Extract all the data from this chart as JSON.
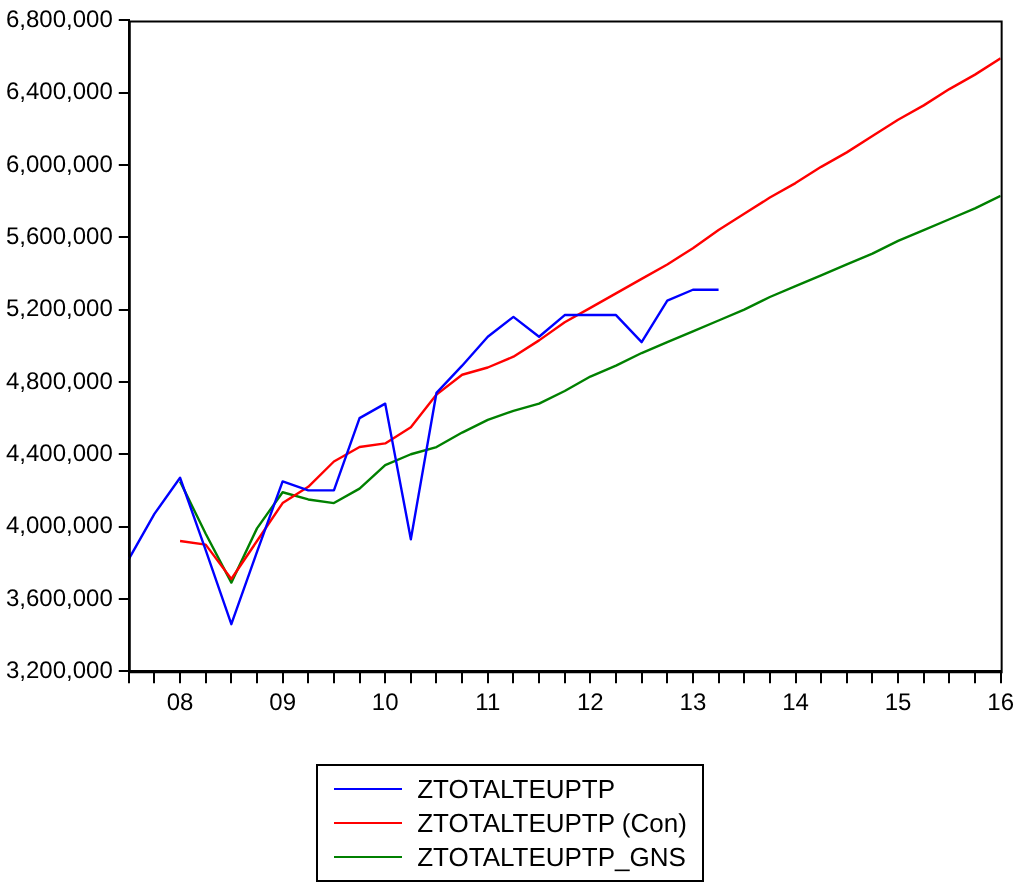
{
  "chart_data": {
    "type": "line",
    "legend": "bottom",
    "grid": false,
    "marker": "none",
    "line_style": "solid",
    "categories": [
      null,
      null,
      "08",
      null,
      null,
      null,
      "09",
      null,
      null,
      null,
      "10",
      null,
      null,
      null,
      "11",
      null,
      null,
      null,
      "12",
      null,
      null,
      null,
      "13",
      null,
      null,
      null,
      "14",
      null,
      null,
      null,
      "15",
      null,
      null,
      null,
      "16"
    ],
    "ylim": [
      3200000,
      6800000
    ],
    "yticks": [
      {
        "value": 3200000,
        "label": "3,200,000"
      },
      {
        "value": 3600000,
        "label": "3,600,000"
      },
      {
        "value": 4000000,
        "label": "4,000,000"
      },
      {
        "value": 4400000,
        "label": "4,400,000"
      },
      {
        "value": 4800000,
        "label": "4,800,000"
      },
      {
        "value": 5200000,
        "label": "5,200,000"
      },
      {
        "value": 5600000,
        "label": "5,600,000"
      },
      {
        "value": 6000000,
        "label": "6,000,000"
      },
      {
        "value": 6400000,
        "label": "6,400,000"
      },
      {
        "value": 6800000,
        "label": "6,800,000"
      }
    ],
    "series": [
      {
        "name": "ZTOTALTEUPTP",
        "color": "#0000ff",
        "values": [
          3820000,
          4070000,
          4270000,
          3870000,
          3460000,
          3860000,
          4250000,
          4200000,
          4200000,
          4600000,
          4680000,
          3930000,
          4740000,
          4890000,
          5050000,
          5160000,
          5050000,
          5170000,
          5170000,
          5170000,
          5020000,
          5250000,
          5310000,
          5310000,
          null,
          null,
          null,
          null,
          null,
          null,
          null,
          null,
          null,
          null,
          null
        ]
      },
      {
        "name": "ZTOTALTEUPTP (Con)",
        "color": "#ff0000",
        "values": [
          null,
          null,
          3920000,
          3900000,
          3710000,
          3920000,
          4130000,
          4220000,
          4360000,
          4440000,
          4460000,
          4550000,
          4730000,
          4840000,
          4880000,
          4940000,
          5030000,
          5130000,
          5210000,
          5290000,
          5370000,
          5450000,
          5540000,
          5640000,
          5730000,
          5820000,
          5900000,
          5990000,
          6070000,
          6160000,
          6250000,
          6330000,
          6420000,
          6500000,
          6590000
        ]
      },
      {
        "name": "ZTOTALTEUPTP_GNS",
        "color": "#008000",
        "values": [
          null,
          null,
          4250000,
          3960000,
          3690000,
          3990000,
          4190000,
          4150000,
          4130000,
          4210000,
          4340000,
          4400000,
          4440000,
          4520000,
          4590000,
          4640000,
          4680000,
          4750000,
          4830000,
          4890000,
          4960000,
          5020000,
          5080000,
          5140000,
          5200000,
          5270000,
          5330000,
          5390000,
          5450000,
          5510000,
          5580000,
          5640000,
          5700000,
          5760000,
          5830000
        ]
      }
    ]
  }
}
